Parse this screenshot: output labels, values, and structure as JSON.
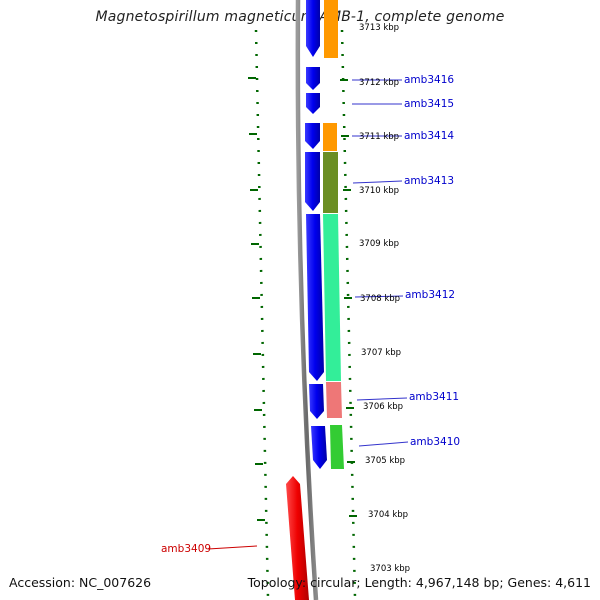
{
  "title": "Magnetospirillum magneticum AMB-1, complete genome",
  "footer": {
    "accession": "Accession: NC_007626",
    "stats": "Topology: circular; Length: 4,967,148 bp; Genes: 4,611"
  },
  "scale_labels": [
    "3713 kbp",
    "3712 kbp",
    "3711 kbp",
    "3710 kbp",
    "3709 kbp",
    "3708 kbp",
    "3707 kbp",
    "3706 kbp",
    "3705 kbp",
    "3704 kbp",
    "3703 kbp"
  ],
  "genes": [
    {
      "name": "amb3416",
      "color": "#0000cc"
    },
    {
      "name": "amb3415",
      "color": "#0000cc"
    },
    {
      "name": "amb3414",
      "color": "#0000cc"
    },
    {
      "name": "amb3413",
      "color": "#0000cc"
    },
    {
      "name": "amb3412",
      "color": "#0000cc"
    },
    {
      "name": "amb3411",
      "color": "#0000cc"
    },
    {
      "name": "amb3410",
      "color": "#0000cc"
    },
    {
      "name": "amb3409",
      "color": "#cc0000"
    }
  ],
  "colors": {
    "forward_strand": "#0000ee",
    "reverse_strand": "#ee0000",
    "backbone": "#777777",
    "gc_skew_dots": "#006600",
    "cog_orange": "#ff9900",
    "cog_olive": "#6b8e23",
    "cog_aqua": "#33ee99",
    "cog_pink": "#ee7777",
    "cog_green": "#33cc33"
  }
}
